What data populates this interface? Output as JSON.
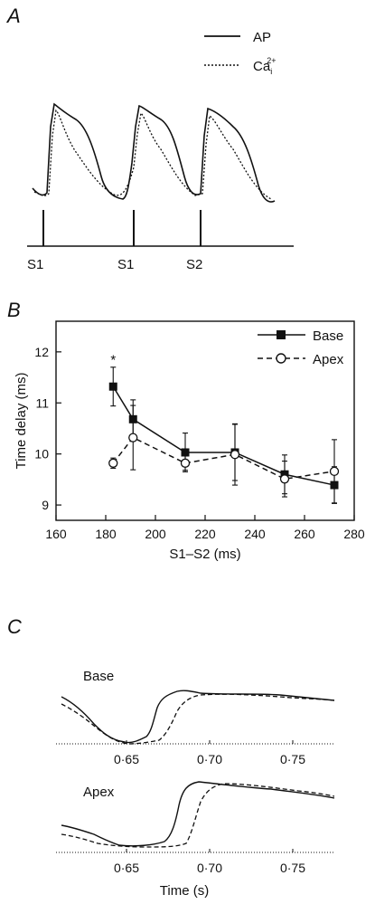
{
  "panel_a": {
    "letter": "A",
    "legend": [
      {
        "label": "AP",
        "style": "solid"
      },
      {
        "label": "Ca",
        "sub": "i",
        "sup": "2+",
        "style": "dotted"
      }
    ],
    "stimuli": [
      "S1",
      "S1",
      "S2"
    ]
  },
  "panel_b": {
    "letter": "B"
  },
  "panel_c": {
    "letter": "C",
    "trace_labels": [
      "Base",
      "Apex"
    ],
    "xlabel": "Time (s)",
    "xticks": [
      "0·65",
      "0·70",
      "0·75"
    ]
  },
  "chart_data": [
    {
      "type": "scatter",
      "xlabel": "S1–S2 (ms)",
      "ylabel": "Time delay (ms)",
      "xlim": [
        160,
        280
      ],
      "ylim": [
        8.7,
        12.6
      ],
      "xticks": [
        160,
        180,
        200,
        220,
        240,
        260,
        280
      ],
      "yticks": [
        9,
        10,
        11,
        12
      ],
      "annotation": {
        "text": "*",
        "x": 183,
        "y": 11.9
      },
      "legend_position": "top-right",
      "series": [
        {
          "name": "Base",
          "marker": "filled-square",
          "line": "solid",
          "x": [
            183,
            191,
            212,
            232,
            252,
            272
          ],
          "y": [
            11.32,
            10.68,
            10.03,
            10.03,
            9.6,
            9.39
          ],
          "err": [
            0.38,
            0.38,
            0.38,
            0.55,
            0.38,
            0.36
          ]
        },
        {
          "name": "Apex",
          "marker": "open-circle",
          "line": "dashed",
          "x": [
            183,
            191,
            212,
            232,
            252,
            272
          ],
          "y": [
            9.82,
            10.32,
            9.82,
            9.99,
            9.51,
            9.66
          ],
          "err": [
            0.1,
            0.63,
            0.14,
            0.6,
            0.35,
            0.62
          ]
        }
      ]
    }
  ]
}
